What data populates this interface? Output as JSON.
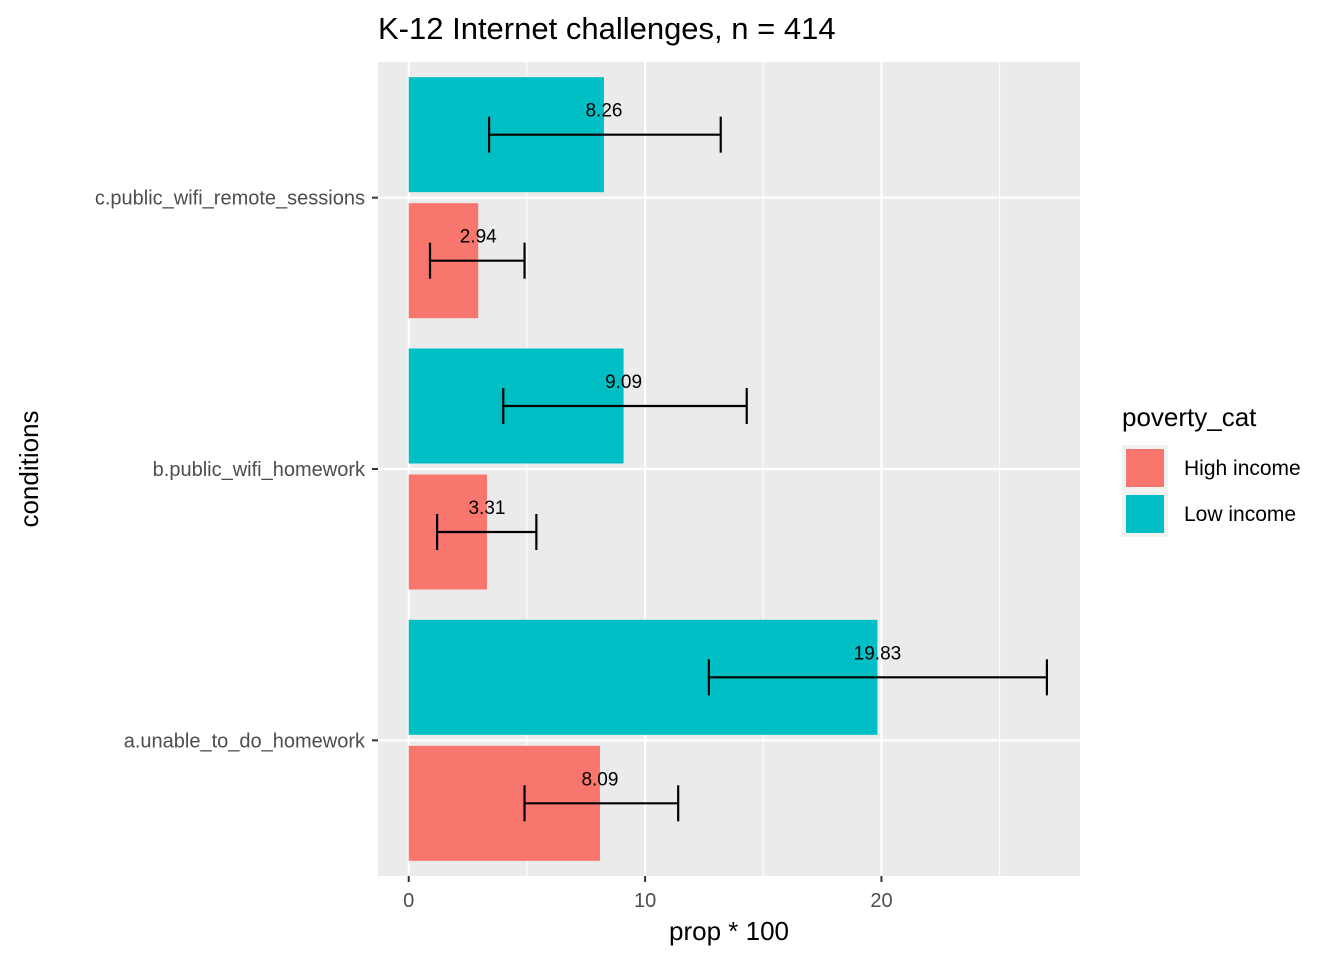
{
  "chart_data": {
    "type": "bar",
    "orientation": "horizontal",
    "title": "K-12 Internet challenges, n = 414",
    "xlabel": "prop * 100",
    "ylabel": "conditions",
    "xlim": [
      -1.3,
      28.4
    ],
    "x_ticks": [
      0,
      10,
      20
    ],
    "categories": [
      "a.unable_to_do_homework",
      "b.public_wifi_homework",
      "c.public_wifi_remote_sessions"
    ],
    "series": [
      {
        "name": "High income",
        "color": "#F8766D",
        "values": [
          8.09,
          3.31,
          2.94
        ],
        "labels": [
          "8.09",
          "3.31",
          "2.94"
        ],
        "error_low": [
          4.9,
          1.2,
          0.9
        ],
        "error_high": [
          11.4,
          5.4,
          4.9
        ]
      },
      {
        "name": "Low income",
        "color": "#00BFC4",
        "values": [
          19.83,
          9.09,
          8.26
        ],
        "labels": [
          "19.83",
          "9.09",
          "8.26"
        ],
        "error_low": [
          12.7,
          4.0,
          3.4
        ],
        "error_high": [
          27.0,
          14.3,
          13.2
        ]
      }
    ],
    "legend": {
      "title": "poverty_cat",
      "position": "right"
    },
    "grid": true
  }
}
